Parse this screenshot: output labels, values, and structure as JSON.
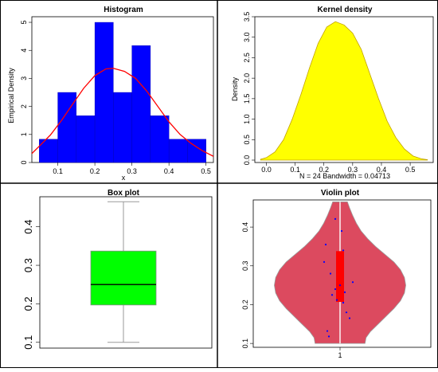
{
  "colors": {
    "histogram_bars": "#0000ff",
    "histogram_curve": "#ff0000",
    "density_fill": "#ffff00",
    "box_fill": "#00ff00",
    "violin_fill": "#dc4a5f",
    "violin_box": "#ff0000",
    "violin_points": "#0000ff"
  },
  "chart_data": [
    {
      "type": "bar",
      "title": "Histogram",
      "xlabel": "x",
      "ylabel": "Empirical Density",
      "bin_edges": [
        0.05,
        0.1,
        0.15,
        0.2,
        0.25,
        0.3,
        0.35,
        0.4,
        0.45,
        0.5
      ],
      "values": [
        0.83,
        2.5,
        1.67,
        5.0,
        2.5,
        4.17,
        1.67,
        0.83,
        0.83
      ],
      "curve": {
        "x": [
          0.03,
          0.05,
          0.08,
          0.11,
          0.14,
          0.17,
          0.2,
          0.23,
          0.25,
          0.28,
          0.31,
          0.34,
          0.37,
          0.4,
          0.43,
          0.46,
          0.49,
          0.52
        ],
        "y": [
          0.32,
          0.58,
          0.98,
          1.5,
          2.08,
          2.65,
          3.1,
          3.34,
          3.36,
          3.25,
          3.0,
          2.55,
          2.0,
          1.45,
          1.0,
          0.68,
          0.42,
          0.22
        ]
      },
      "xticks": [
        "0.1",
        "0.2",
        "0.3",
        "0.4",
        "0.5"
      ],
      "yticks": [
        "0",
        "1",
        "2",
        "3",
        "4",
        "5"
      ],
      "xlim": [
        0.03,
        0.52
      ],
      "ylim": [
        0,
        5.2
      ]
    },
    {
      "type": "area",
      "title": "Kernel density",
      "ylabel": "Density",
      "xlabel": "N = 24   Bandwidth = 0.04713",
      "x": [
        -0.02,
        0.0,
        0.03,
        0.06,
        0.09,
        0.12,
        0.15,
        0.18,
        0.21,
        0.24,
        0.27,
        0.3,
        0.33,
        0.36,
        0.39,
        0.42,
        0.45,
        0.48,
        0.51,
        0.54,
        0.56
      ],
      "y": [
        0.02,
        0.06,
        0.2,
        0.5,
        1.0,
        1.6,
        2.25,
        2.85,
        3.25,
        3.38,
        3.3,
        3.1,
        2.7,
        2.1,
        1.5,
        0.95,
        0.55,
        0.27,
        0.1,
        0.03,
        0.01
      ],
      "xticks": [
        "0.0",
        "0.1",
        "0.2",
        "0.3",
        "0.4",
        "0.5"
      ],
      "yticks": [
        "0.0",
        "0.5",
        "1.0",
        "1.5",
        "2.0",
        "2.5",
        "3.0",
        "3.5"
      ],
      "xlim": [
        -0.04,
        0.58
      ],
      "ylim": [
        0,
        3.5
      ]
    },
    {
      "type": "box",
      "title": "Box plot",
      "min": 0.1,
      "q1": 0.197,
      "median": 0.25,
      "q3": 0.337,
      "max": 0.465,
      "yticks": [
        "0.1",
        "0.2",
        "0.3",
        "0.4"
      ],
      "ylim": [
        0.085,
        0.478
      ]
    },
    {
      "type": "violin",
      "title": "Violin plot",
      "xtick": "1",
      "yticks": [
        "0.1",
        "0.2",
        "0.3",
        "0.4"
      ],
      "ylim": [
        0.09,
        0.47
      ],
      "min": 0.1,
      "q1": 0.207,
      "median": 0.25,
      "q3": 0.338,
      "max": 0.465,
      "density_y": [
        0.1,
        0.115,
        0.13,
        0.15,
        0.17,
        0.19,
        0.21,
        0.23,
        0.25,
        0.27,
        0.29,
        0.31,
        0.33,
        0.35,
        0.37,
        0.39,
        0.41,
        0.43,
        0.45,
        0.465
      ],
      "density_w": [
        0.95,
        0.99,
        1.15,
        1.45,
        1.75,
        2.05,
        2.3,
        2.45,
        2.5,
        2.45,
        2.3,
        2.05,
        1.7,
        1.35,
        1.05,
        0.8,
        0.62,
        0.48,
        0.36,
        0.28
      ],
      "points": [
        {
          "x": 0.985,
          "y": 0.421
        },
        {
          "x": 1.005,
          "y": 0.39
        },
        {
          "x": 0.955,
          "y": 0.355
        },
        {
          "x": 1.01,
          "y": 0.34
        },
        {
          "x": 0.95,
          "y": 0.31
        },
        {
          "x": 0.97,
          "y": 0.28
        },
        {
          "x": 1.04,
          "y": 0.258
        },
        {
          "x": 1.0,
          "y": 0.25
        },
        {
          "x": 0.985,
          "y": 0.24
        },
        {
          "x": 1.015,
          "y": 0.232
        },
        {
          "x": 0.975,
          "y": 0.225
        },
        {
          "x": 0.99,
          "y": 0.212
        },
        {
          "x": 1.01,
          "y": 0.205
        },
        {
          "x": 1.02,
          "y": 0.18
        },
        {
          "x": 1.03,
          "y": 0.165
        },
        {
          "x": 0.96,
          "y": 0.132
        },
        {
          "x": 0.965,
          "y": 0.118
        }
      ]
    }
  ]
}
